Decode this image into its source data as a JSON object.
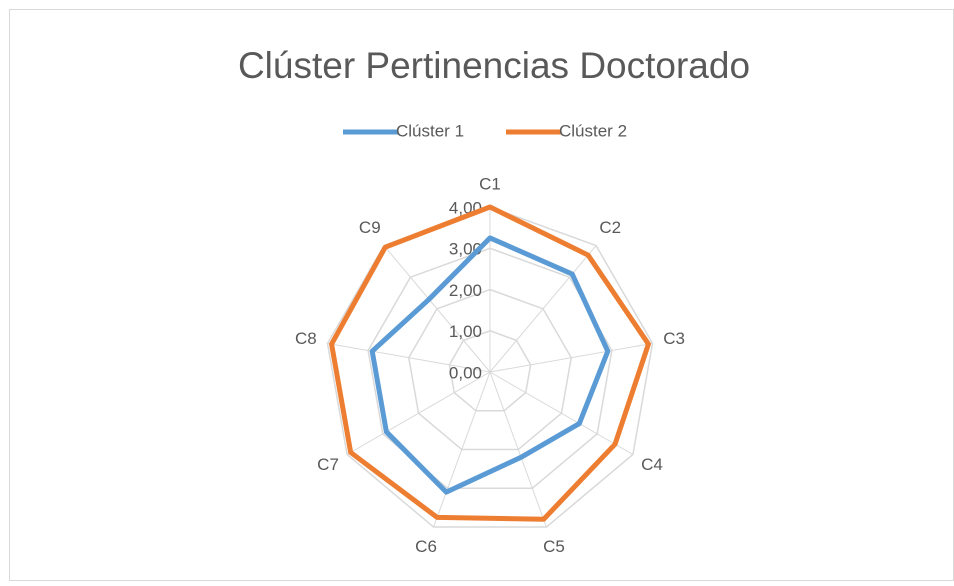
{
  "chart_data": {
    "type": "radar",
    "title": "Clúster Pertinencias Doctorado",
    "categories": [
      "C1",
      "C2",
      "C3",
      "C4",
      "C5",
      "C6",
      "C7",
      "C8",
      "C9"
    ],
    "series": [
      {
        "name": "Clúster 1",
        "color": "#5b9bd5",
        "values": [
          3.25,
          3.1,
          2.9,
          2.5,
          2.2,
          3.1,
          2.9,
          2.9,
          2.3
        ]
      },
      {
        "name": "Clúster 2",
        "color": "#ed7d31",
        "values": [
          4.0,
          3.7,
          3.9,
          3.5,
          3.8,
          3.75,
          3.9,
          3.9,
          3.95
        ]
      }
    ],
    "ylim": [
      0,
      4
    ],
    "yticks": [
      {
        "value": 0,
        "label": "0,00"
      },
      {
        "value": 1,
        "label": "1,00"
      },
      {
        "value": 2,
        "label": "2,00"
      },
      {
        "value": 3,
        "label": "3,00"
      },
      {
        "value": 4,
        "label": "4,00"
      }
    ],
    "grid": true,
    "legend": "top"
  }
}
